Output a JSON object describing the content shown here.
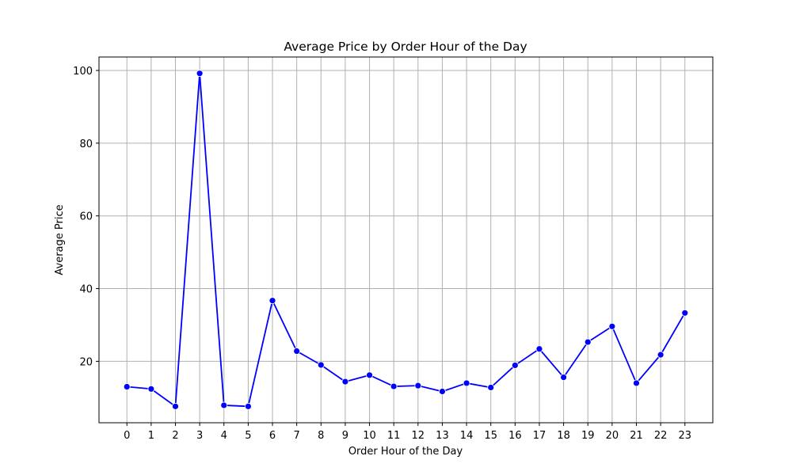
{
  "chart_data": {
    "type": "line",
    "title": "Average Price by Order Hour of the Day",
    "xlabel": "Order Hour of the Day",
    "ylabel": "Average Price",
    "x": [
      0,
      1,
      2,
      3,
      4,
      5,
      6,
      7,
      8,
      9,
      10,
      11,
      12,
      13,
      14,
      15,
      16,
      17,
      18,
      19,
      20,
      21,
      22,
      23
    ],
    "x_tick_labels": [
      "0",
      "1",
      "2",
      "3",
      "4",
      "5",
      "6",
      "7",
      "8",
      "9",
      "10",
      "11",
      "12",
      "13",
      "14",
      "15",
      "16",
      "17",
      "18",
      "19",
      "20",
      "21",
      "22",
      "23"
    ],
    "series": [
      {
        "values": [
          13.0,
          12.4,
          7.6,
          99.2,
          7.9,
          7.6,
          36.7,
          22.8,
          19.0,
          14.4,
          16.2,
          13.1,
          13.3,
          11.7,
          14.0,
          12.8,
          18.9,
          23.4,
          15.6,
          25.3,
          29.6,
          14.0,
          21.8,
          33.3
        ],
        "color": "#0000ff",
        "marker": "circle"
      }
    ],
    "xlim": [
      -1.15,
      24.15
    ],
    "ylim": [
      3.1,
      103.7
    ],
    "y_ticks": [
      20,
      40,
      60,
      80,
      100
    ],
    "y_tick_labels": [
      "20",
      "40",
      "60",
      "80",
      "100"
    ],
    "grid": true,
    "grid_color": "#b0b0b0"
  }
}
